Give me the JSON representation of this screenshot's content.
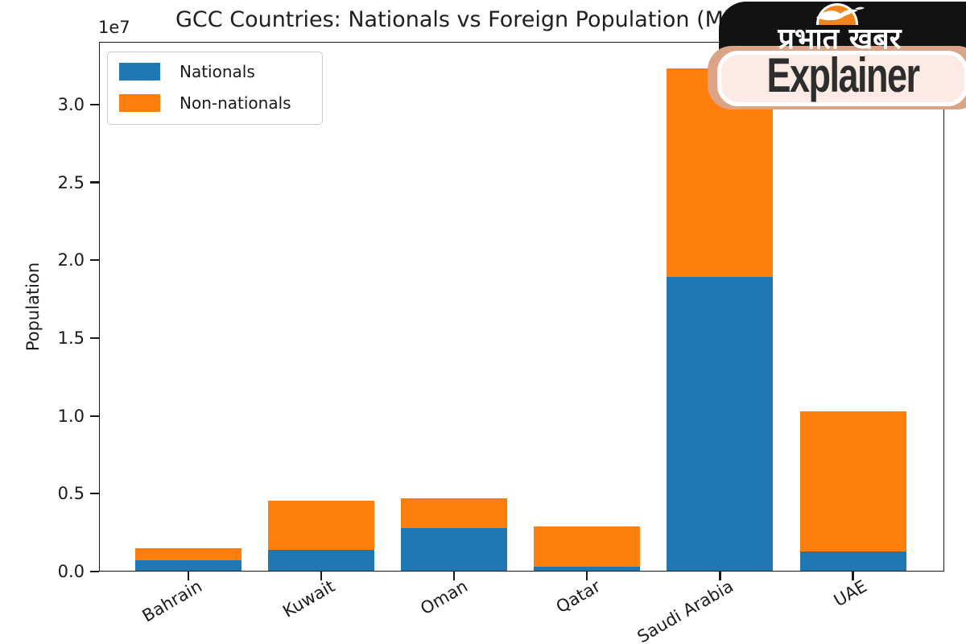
{
  "chart_data": {
    "type": "bar",
    "stacked": true,
    "title": "GCC Countries: Nationals vs Foreign Population (Mid-2",
    "ylabel": "Population",
    "offset_label": "1e7",
    "categories": [
      "Bahrain",
      "Kuwait",
      "Oman",
      "Qatar",
      "Saudi Arabia",
      "UAE"
    ],
    "series": [
      {
        "name": "Nationals",
        "color": "#1f77b4",
        "values": [
          700000,
          1400000,
          2800000,
          300000,
          18900000,
          1300000
        ]
      },
      {
        "name": "Non-nationals",
        "color": "#ff7f0e",
        "values": [
          800000,
          3150000,
          1900000,
          2600000,
          13400000,
          9000000
        ]
      }
    ],
    "ylim": [
      0,
      34000000
    ],
    "yticks": [
      {
        "label": "0.0",
        "value": 0
      },
      {
        "label": "0.5",
        "value": 5000000
      },
      {
        "label": "1.0",
        "value": 10000000
      },
      {
        "label": "1.5",
        "value": 15000000
      },
      {
        "label": "2.0",
        "value": 20000000
      },
      {
        "label": "2.5",
        "value": 25000000
      },
      {
        "label": "3.0",
        "value": 30000000
      }
    ],
    "legend_position": "upper left",
    "grid": false,
    "xlabel_rotation_deg": 30
  },
  "watermark": {
    "brand_hindi": "प्रभात खबर",
    "brand_sub": "Explainer",
    "colors": {
      "badge_black": "#121212",
      "badge_peach": "#dca487",
      "badge_pink": "#fcebe4",
      "sun_orange": "#f0841f",
      "text_dark": "#2d2d2d"
    }
  }
}
